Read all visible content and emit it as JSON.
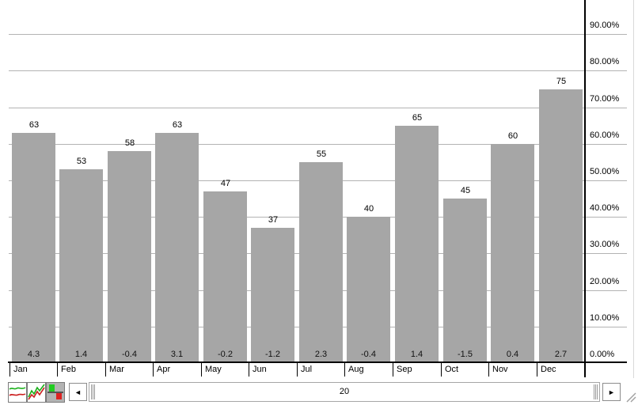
{
  "chart_data": {
    "type": "bar",
    "title": "",
    "xlabel": "",
    "ylabel": "",
    "categories": [
      "Jan",
      "Feb",
      "Mar",
      "Apr",
      "May",
      "Jun",
      "Jul",
      "Aug",
      "Sep",
      "Oct",
      "Nov",
      "Dec"
    ],
    "series": [
      {
        "name": "bar-heights",
        "values": [
          63,
          53,
          58,
          63,
          47,
          37,
          55,
          40,
          65,
          45,
          60,
          75
        ]
      },
      {
        "name": "footer-values",
        "values": [
          "4.3",
          "1.4",
          "-0.4",
          "3.1",
          "-0.2",
          "-1.2",
          "2.3",
          "-0.4",
          "1.4",
          "-1.5",
          "0.4",
          "2.7"
        ]
      }
    ],
    "ylim": [
      0,
      100
    ],
    "y_axis_side": "right",
    "y_ticks": [
      {
        "value": 0,
        "label": "0.00%"
      },
      {
        "value": 10,
        "label": "10.00%"
      },
      {
        "value": 20,
        "label": "20.00%"
      },
      {
        "value": 30,
        "label": "30.00%"
      },
      {
        "value": 40,
        "label": "40.00%"
      },
      {
        "value": 50,
        "label": "50.00%"
      },
      {
        "value": 60,
        "label": "60.00%"
      },
      {
        "value": 70,
        "label": "70.00%"
      },
      {
        "value": 80,
        "label": "80.00%"
      },
      {
        "value": 90,
        "label": "90.00%"
      }
    ],
    "grid": true,
    "legend": "none",
    "bar_color": "#a6a6a6",
    "gridline_color": "#b3b3b3",
    "axis_color": "#000000"
  },
  "controls": {
    "chart_type_buttons": [
      {
        "icon": "smooth-line-chart-icon",
        "selected": false,
        "colors": [
          "#18b018",
          "#cc2020"
        ]
      },
      {
        "icon": "zigzag-line-chart-icon",
        "selected": false,
        "colors": [
          "#18b018",
          "#cc2020"
        ]
      },
      {
        "icon": "green-red-squares-chart-icon",
        "selected": true,
        "colors": [
          "#22cc22",
          "#dd2222"
        ]
      }
    ],
    "scrollbar": {
      "left_arrow": "◄",
      "right_arrow": "►",
      "thumb_label": "20"
    }
  }
}
